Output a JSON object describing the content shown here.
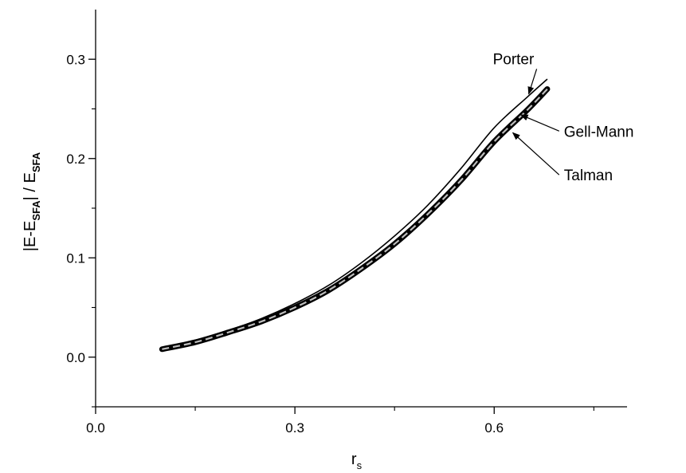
{
  "chart_data": {
    "type": "line",
    "title": "",
    "xlabel": {
      "main": "r",
      "sub": "s"
    },
    "ylabel": {
      "parts": [
        "|E-E",
        "SFA",
        "| / E",
        "SFA"
      ]
    },
    "xlim": [
      0.0,
      0.8
    ],
    "ylim": [
      -0.05,
      0.35
    ],
    "xticks": [
      0.0,
      0.3,
      0.6
    ],
    "xtick_labels": [
      "0.0",
      "0.3",
      "0.6"
    ],
    "xminor": [
      0.15,
      0.45,
      0.75
    ],
    "yticks": [
      0.0,
      0.1,
      0.2,
      0.3
    ],
    "ytick_labels": [
      "0.0",
      "0.1",
      "0.2",
      "0.3"
    ],
    "yminor": [
      -0.05,
      0.05,
      0.15,
      0.25
    ],
    "grid": false,
    "legend": "none",
    "x": [
      0.1,
      0.15,
      0.2,
      0.25,
      0.3,
      0.35,
      0.4,
      0.45,
      0.5,
      0.55,
      0.6,
      0.65,
      0.68
    ],
    "series": [
      {
        "name": "Porter",
        "style": "thin-solid",
        "values": [
          0.009,
          0.017,
          0.027,
          0.039,
          0.054,
          0.072,
          0.095,
          0.122,
          0.153,
          0.19,
          0.231,
          0.262,
          0.28
        ]
      },
      {
        "name": "Gell-Mann",
        "style": "thick-solid",
        "values": [
          0.008,
          0.015,
          0.025,
          0.036,
          0.05,
          0.067,
          0.089,
          0.114,
          0.144,
          0.178,
          0.217,
          0.249,
          0.27
        ]
      },
      {
        "name": "Talman",
        "style": "gray-dashed",
        "values": [
          0.008,
          0.015,
          0.025,
          0.036,
          0.05,
          0.067,
          0.089,
          0.114,
          0.144,
          0.178,
          0.217,
          0.249,
          0.27
        ]
      }
    ],
    "annotations": [
      {
        "text": "Porter",
        "series": "Porter",
        "label_x": 0.598,
        "label_y": 0.295,
        "tip_x": 0.652,
        "tip_y": 0.265
      },
      {
        "text": "Gell-Mann",
        "series": "Gell-Mann",
        "label_x": 0.705,
        "label_y": 0.222,
        "tip_x": 0.64,
        "tip_y": 0.244
      },
      {
        "text": "Talman",
        "series": "Talman",
        "label_x": 0.705,
        "label_y": 0.178,
        "tip_x": 0.628,
        "tip_y": 0.226
      }
    ]
  }
}
